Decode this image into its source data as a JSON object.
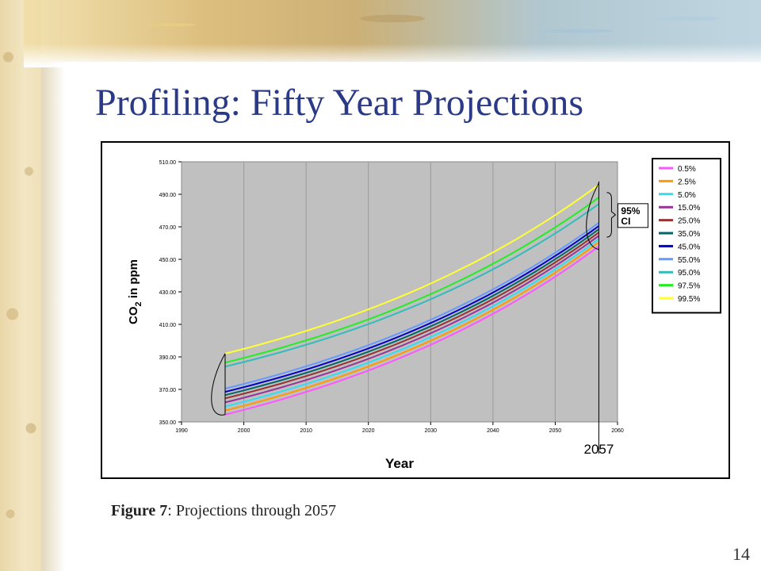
{
  "slide": {
    "title": "Profiling: Fifty Year Projections",
    "caption_bold": "Figure 7",
    "caption_rest": ": Projections through 2057",
    "page_number": "14"
  },
  "chart_data": {
    "type": "line",
    "title": "",
    "xlabel": "Year",
    "ylabel_prefix": "CO",
    "ylabel_sub": "2",
    "ylabel_suffix": " in ppm",
    "xlim": [
      1990,
      2060
    ],
    "ylim": [
      350,
      510
    ],
    "x_ticks": [
      1990,
      2000,
      2010,
      2020,
      2030,
      2040,
      2050,
      2060
    ],
    "y_ticks": [
      "350.00",
      "370.00",
      "390.00",
      "410.00",
      "430.00",
      "450.00",
      "470.00",
      "490.00",
      "510.00"
    ],
    "plot_background": "#c0c0c0",
    "grid": "vertical",
    "legend_position": "right",
    "x": [
      1997,
      2057
    ],
    "series": [
      {
        "name": "0.5%",
        "color": "#ff55ff",
        "values": [
          354.5,
          458.0
        ]
      },
      {
        "name": "2.5%",
        "color": "#ff9900",
        "values": [
          357.0,
          460.5
        ]
      },
      {
        "name": "5.0%",
        "color": "#33ddee",
        "values": [
          359.5,
          462.5
        ]
      },
      {
        "name": "15.0%",
        "color": "#993399",
        "values": [
          362.0,
          464.5
        ]
      },
      {
        "name": "25.0%",
        "color": "#993333",
        "values": [
          364.5,
          466.5
        ]
      },
      {
        "name": "35.0%",
        "color": "#006666",
        "values": [
          366.5,
          468.5
        ]
      },
      {
        "name": "45.0%",
        "color": "#0000cc",
        "values": [
          368.5,
          470.5
        ]
      },
      {
        "name": "55.0%",
        "color": "#6699ff",
        "values": [
          370.5,
          472.5
        ]
      },
      {
        "name": "95.0%",
        "color": "#33bbbb",
        "values": [
          384.0,
          484.0
        ]
      },
      {
        "name": "97.5%",
        "color": "#22ee22",
        "values": [
          386.5,
          488.0
        ]
      },
      {
        "name": "99.5%",
        "color": "#ffff33",
        "values": [
          392.0,
          496.0
        ]
      }
    ],
    "annotations": {
      "ci_label_line1": "95%",
      "ci_label_line2": "CI",
      "year_marker": "2057"
    }
  }
}
